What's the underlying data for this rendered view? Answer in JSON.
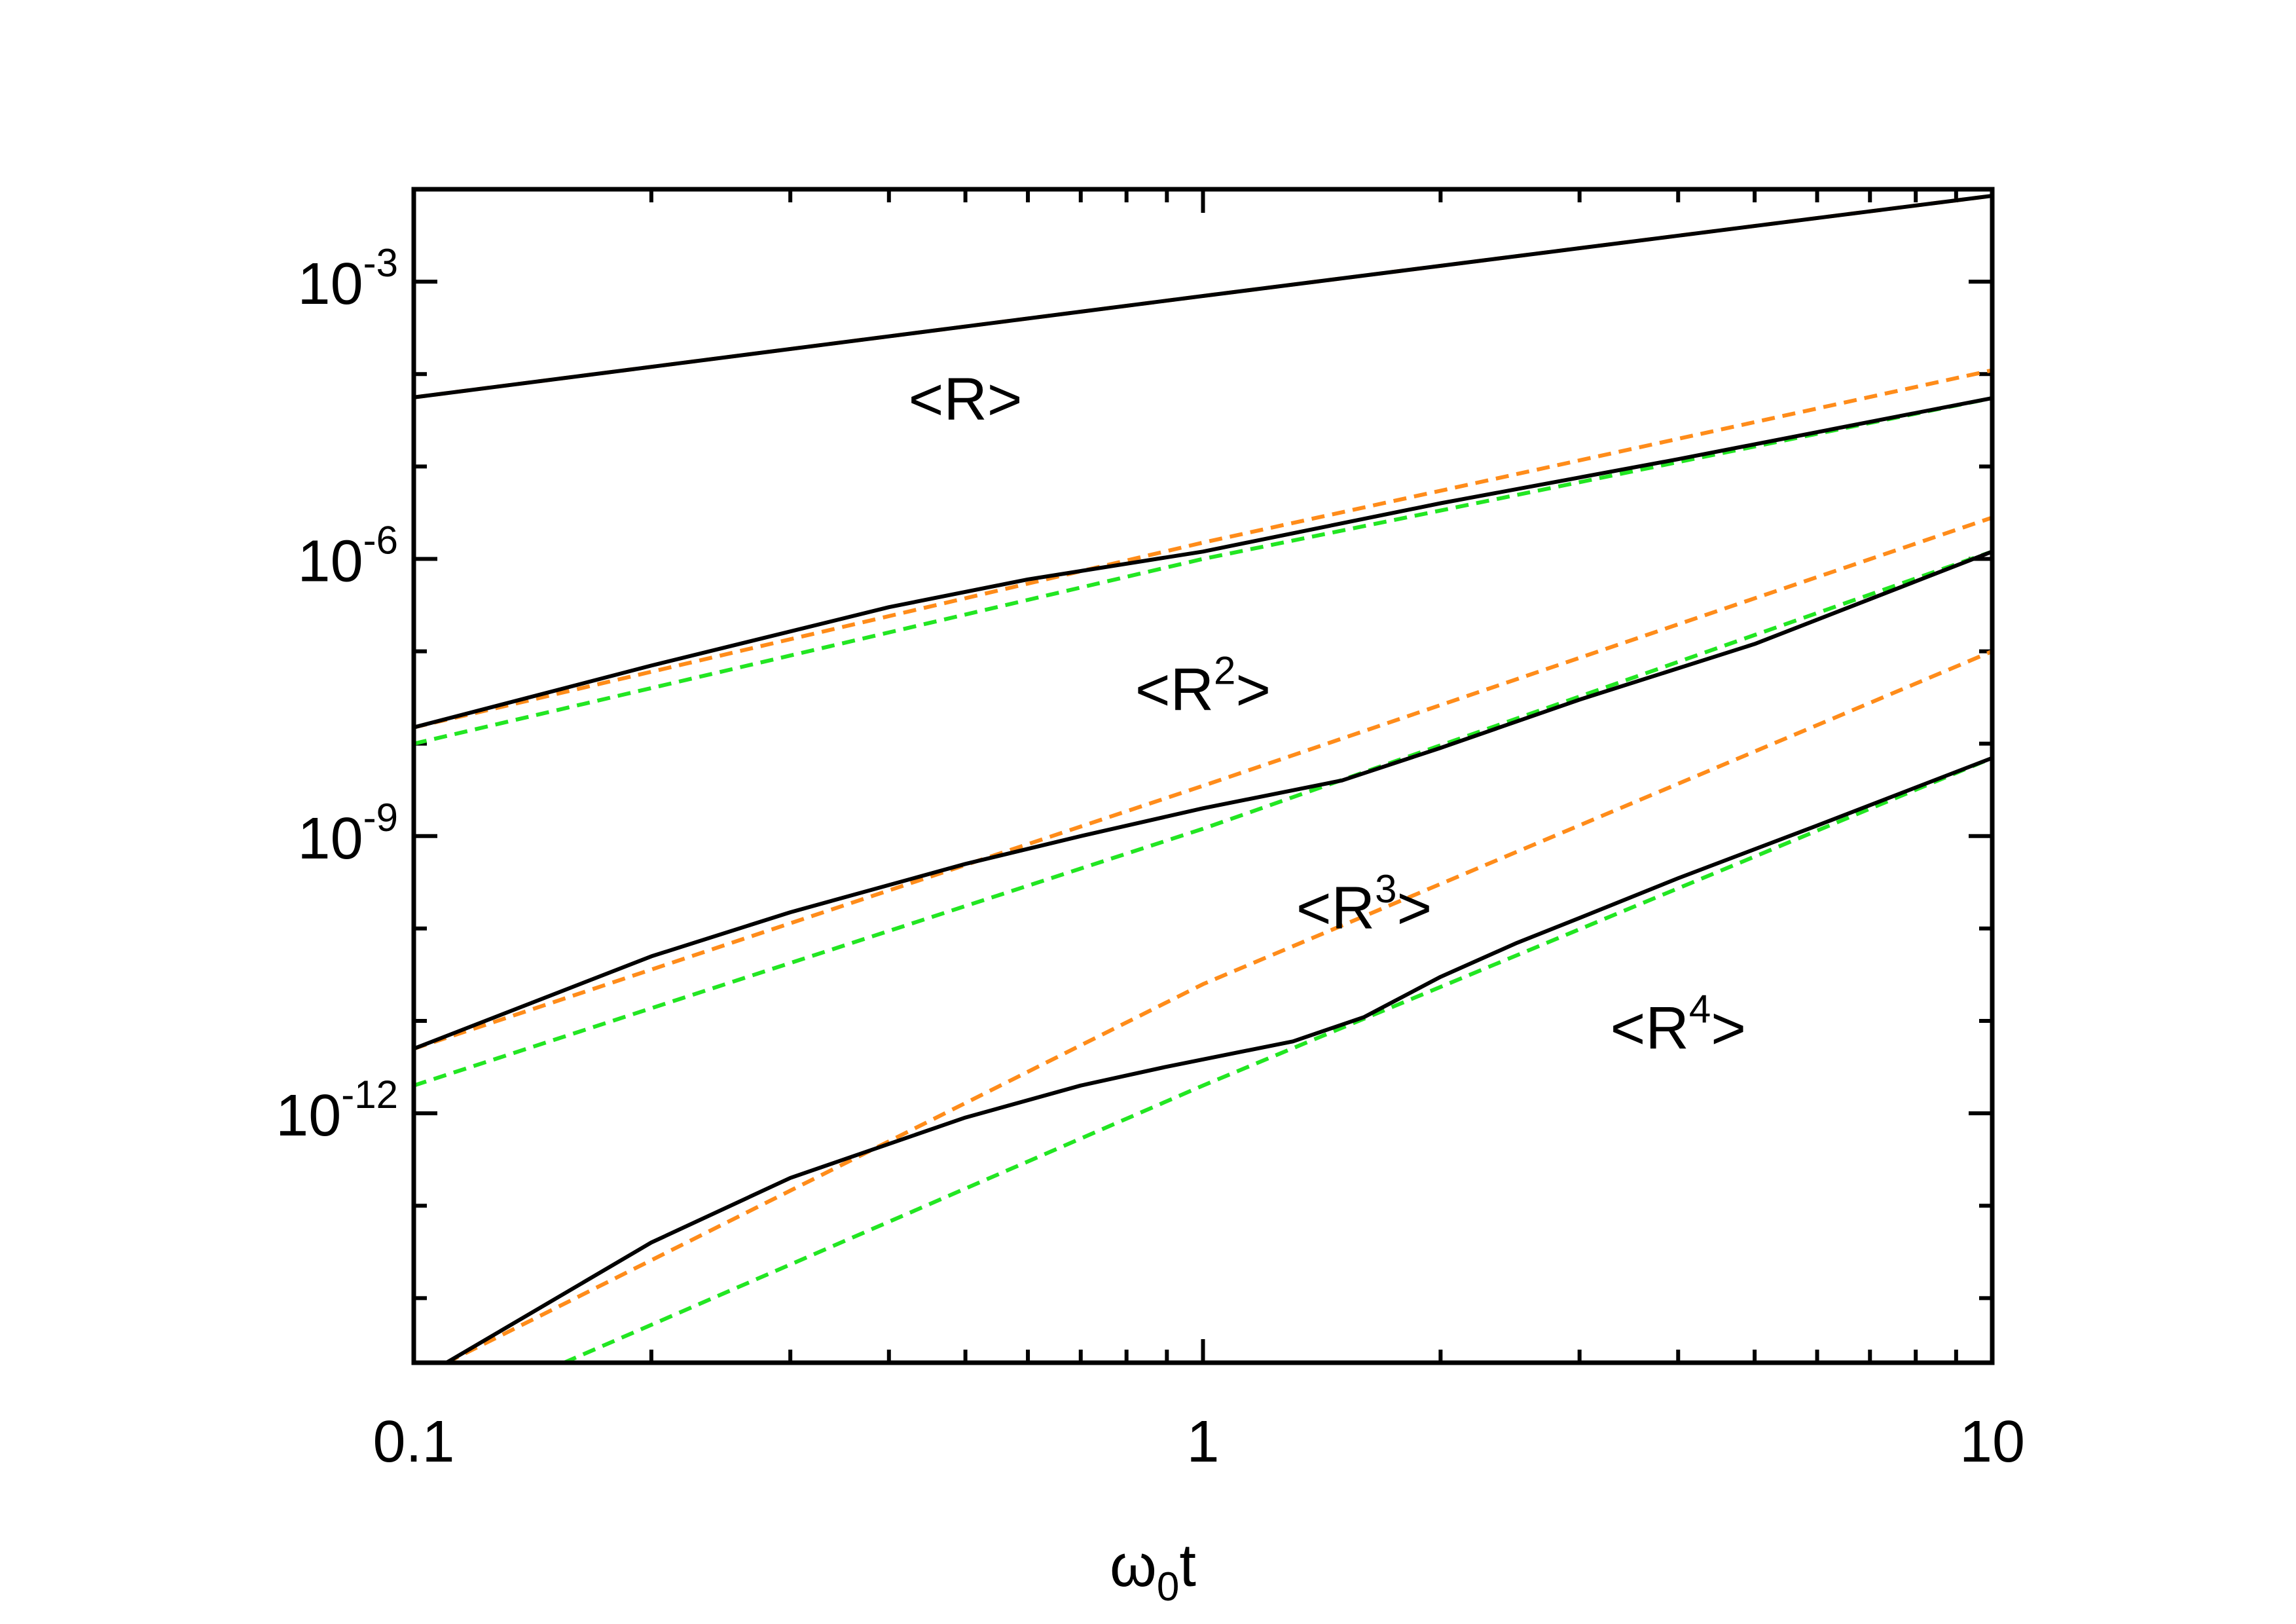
{
  "chart_data": {
    "type": "line",
    "x_scale": "log",
    "y_scale": "log",
    "xlim": [
      0.1,
      10
    ],
    "ylim": [
      2e-15,
      0.01
    ],
    "xlabel": "ω0t",
    "xlabel_main": "ω",
    "xlabel_sub": "0",
    "xlabel_tail": "t",
    "ylabel": "",
    "grid": false,
    "x_ticks": [
      {
        "value": 0.1,
        "label": "0.1"
      },
      {
        "value": 1,
        "label": "1"
      },
      {
        "value": 10,
        "label": "10"
      }
    ],
    "y_ticks": [
      {
        "value": 0.001,
        "base": "10",
        "exp": "-3"
      },
      {
        "value": 1e-06,
        "base": "10",
        "exp": "-6"
      },
      {
        "value": 1e-09,
        "base": "10",
        "exp": "-9"
      },
      {
        "value": 1e-12,
        "base": "10",
        "exp": "-12"
      }
    ],
    "colors": {
      "exact": "#000000",
      "orange": "#ff8c1a",
      "green": "#22e622"
    },
    "series": [
      {
        "group": "R1",
        "style": "solid",
        "color": "black",
        "x": [
          0.1,
          1,
          10
        ],
        "y": [
          5.6e-05,
          0.0007,
          0.0085
        ]
      },
      {
        "group": "R1",
        "style": "dashed",
        "color": "orange",
        "x": [
          0.1,
          1,
          10
        ],
        "y": [
          5.6e-05,
          0.0007,
          0.0085
        ]
      },
      {
        "group": "R2",
        "style": "solid",
        "color": "black",
        "x": [
          0.1,
          0.2,
          0.4,
          0.6,
          1,
          2,
          4,
          10
        ],
        "y": [
          1.5e-08,
          7e-08,
          3e-07,
          6e-07,
          1.2e-06,
          4e-06,
          1.2e-05,
          5.5e-05
        ]
      },
      {
        "group": "R2",
        "style": "dashed",
        "color": "orange",
        "x": [
          0.1,
          1,
          10
        ],
        "y": [
          1.5e-08,
          1.5e-06,
          0.00011
        ]
      },
      {
        "group": "R2",
        "style": "dashed",
        "color": "green",
        "x": [
          0.1,
          1,
          10
        ],
        "y": [
          1e-08,
          1e-06,
          5.5e-05
        ]
      },
      {
        "group": "R3",
        "style": "solid",
        "color": "black",
        "x": [
          0.1,
          0.2,
          0.3,
          0.5,
          0.7,
          1,
          1.5,
          2,
          3,
          5,
          10
        ],
        "y": [
          5e-12,
          5e-11,
          1.5e-10,
          5e-10,
          1e-09,
          2e-09,
          4e-09,
          9e-09,
          3e-08,
          1.2e-07,
          1.2e-06
        ]
      },
      {
        "group": "R3",
        "style": "dashed",
        "color": "orange",
        "x": [
          0.1,
          1,
          10
        ],
        "y": [
          5e-12,
          3.5e-09,
          2.8e-06
        ]
      },
      {
        "group": "R3",
        "style": "dashed",
        "color": "green",
        "x": [
          0.1,
          1,
          10
        ],
        "y": [
          2e-12,
          1.2e-09,
          1.2e-06
        ]
      },
      {
        "group": "R4",
        "style": "solid",
        "color": "black",
        "x": [
          0.11,
          0.2,
          0.3,
          0.5,
          0.7,
          0.9,
          1.3,
          1.6,
          2.0,
          2.5,
          3.0,
          4.0,
          6.0,
          10
        ],
        "y": [
          2e-15,
          4e-14,
          2e-13,
          9e-13,
          2e-12,
          3.2e-12,
          6e-12,
          1.1e-11,
          3e-11,
          7e-11,
          1.3e-10,
          3.5e-10,
          1.3e-09,
          7e-09
        ]
      },
      {
        "group": "R4",
        "style": "dashed",
        "color": "orange",
        "x": [
          0.11,
          1,
          10
        ],
        "y": [
          2e-15,
          2.5e-11,
          1e-07
        ]
      },
      {
        "group": "R4",
        "style": "dashed",
        "color": "green",
        "x": [
          0.155,
          1,
          10
        ],
        "y": [
          2e-15,
          2e-12,
          7e-09
        ]
      }
    ],
    "annotations": [
      {
        "name": "label-R1",
        "main": "<R>",
        "sup": "",
        "tail": "",
        "x": 0.5,
        "y": 3.2e-05
      },
      {
        "name": "label-R2",
        "main": "<R",
        "sup": "2",
        "tail": ">",
        "x": 1.0,
        "y": 2.3e-08
      },
      {
        "name": "label-R3",
        "main": "<R",
        "sup": "3",
        "tail": ">",
        "x": 1.6,
        "y": 1e-10
      },
      {
        "name": "label-R4",
        "main": "<R",
        "sup": "4",
        "tail": ">",
        "x": 4.0,
        "y": 5e-12
      }
    ]
  }
}
